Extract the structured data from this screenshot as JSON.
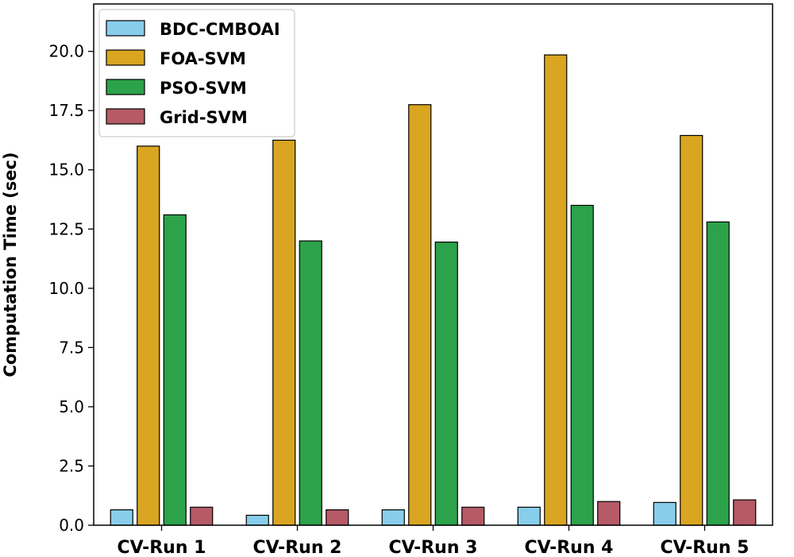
{
  "chart_data": {
    "type": "bar",
    "title": "",
    "xlabel": "",
    "ylabel": "Computation Time (sec)",
    "ylim": [
      0,
      22
    ],
    "yticks": [
      "0.0",
      "2.5",
      "5.0",
      "7.5",
      "10.0",
      "12.5",
      "15.0",
      "17.5",
      "20.0"
    ],
    "ytick_values": [
      0,
      2.5,
      5,
      7.5,
      10,
      12.5,
      15,
      17.5,
      20
    ],
    "grid": false,
    "legend_position": "top-left",
    "categories": [
      "CV-Run 1",
      "CV-Run 2",
      "CV-Run 3",
      "CV-Run 4",
      "CV-Run 5"
    ],
    "series": [
      {
        "name": "BDC-CMBOAI",
        "color": "#87CEEB",
        "values": [
          0.65,
          0.42,
          0.65,
          0.76,
          0.96
        ]
      },
      {
        "name": "FOA-SVM",
        "color": "#DAA520",
        "values": [
          16.0,
          16.25,
          17.75,
          19.85,
          16.45
        ]
      },
      {
        "name": "PSO-SVM",
        "color": "#2CA24A",
        "values": [
          13.1,
          12.0,
          11.95,
          13.5,
          12.8
        ]
      },
      {
        "name": "Grid-SVM",
        "color": "#B55A66",
        "values": [
          0.76,
          0.65,
          0.76,
          1.0,
          1.07
        ]
      }
    ]
  }
}
